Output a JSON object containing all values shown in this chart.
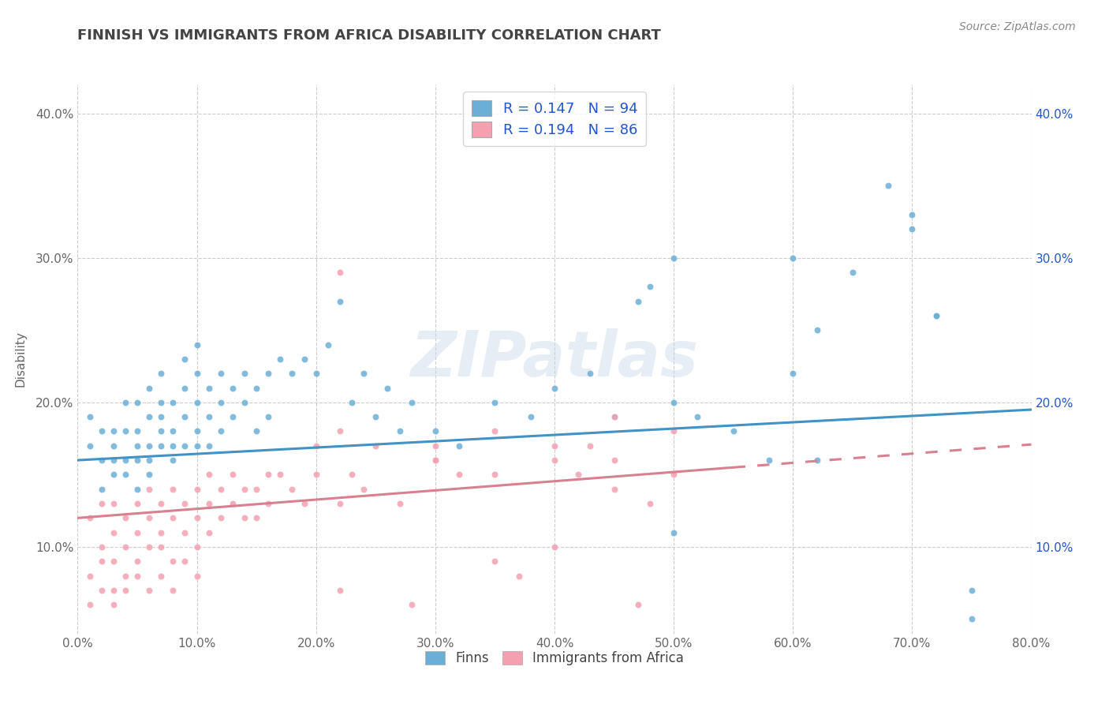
{
  "title": "FINNISH VS IMMIGRANTS FROM AFRICA DISABILITY CORRELATION CHART",
  "source": "Source: ZipAtlas.com",
  "ylabel": "Disability",
  "xlim": [
    0.0,
    0.8
  ],
  "ylim": [
    0.04,
    0.42
  ],
  "xticks": [
    0.0,
    0.1,
    0.2,
    0.3,
    0.4,
    0.5,
    0.6,
    0.7,
    0.8
  ],
  "xticklabels": [
    "0.0%",
    "10.0%",
    "20.0%",
    "30.0%",
    "40.0%",
    "50.0%",
    "60.0%",
    "70.0%",
    "80.0%"
  ],
  "yticks": [
    0.1,
    0.2,
    0.3,
    0.4
  ],
  "yticklabels": [
    "10.0%",
    "20.0%",
    "30.0%",
    "40.0%"
  ],
  "finns_color": "#6baed6",
  "immigrants_color": "#f4a0b0",
  "finns_line_color": "#4292c6",
  "immigrants_line_color": "#d88090",
  "watermark": "ZIPatlas",
  "background_color": "#ffffff",
  "grid_color": "#cccccc",
  "title_color": "#444444",
  "axis_label_color": "#666666",
  "tick_color": "#666666",
  "legend_text_color": "#2255cc",
  "finns_line_start": 0.16,
  "finns_line_end": 0.195,
  "imm_line_start": 0.12,
  "imm_line_end_x": 0.55,
  "imm_line_end": 0.155,
  "finns_x": [
    0.01,
    0.01,
    0.02,
    0.02,
    0.02,
    0.03,
    0.03,
    0.03,
    0.03,
    0.04,
    0.04,
    0.04,
    0.04,
    0.05,
    0.05,
    0.05,
    0.05,
    0.05,
    0.06,
    0.06,
    0.06,
    0.06,
    0.06,
    0.07,
    0.07,
    0.07,
    0.07,
    0.07,
    0.08,
    0.08,
    0.08,
    0.08,
    0.09,
    0.09,
    0.09,
    0.09,
    0.1,
    0.1,
    0.1,
    0.1,
    0.1,
    0.11,
    0.11,
    0.11,
    0.12,
    0.12,
    0.12,
    0.13,
    0.13,
    0.14,
    0.14,
    0.15,
    0.15,
    0.16,
    0.16,
    0.17,
    0.18,
    0.19,
    0.2,
    0.21,
    0.22,
    0.23,
    0.24,
    0.25,
    0.26,
    0.27,
    0.28,
    0.3,
    0.32,
    0.35,
    0.38,
    0.4,
    0.43,
    0.45,
    0.48,
    0.5,
    0.52,
    0.55,
    0.58,
    0.6,
    0.62,
    0.65,
    0.68,
    0.7,
    0.72,
    0.75,
    0.47,
    0.5,
    0.62,
    0.7,
    0.72,
    0.75,
    0.5,
    0.6
  ],
  "finns_y": [
    0.17,
    0.19,
    0.16,
    0.18,
    0.14,
    0.15,
    0.17,
    0.18,
    0.16,
    0.16,
    0.18,
    0.2,
    0.15,
    0.14,
    0.16,
    0.18,
    0.2,
    0.17,
    0.15,
    0.17,
    0.19,
    0.21,
    0.16,
    0.18,
    0.2,
    0.22,
    0.17,
    0.19,
    0.16,
    0.18,
    0.2,
    0.17,
    0.19,
    0.21,
    0.17,
    0.23,
    0.18,
    0.2,
    0.22,
    0.17,
    0.24,
    0.19,
    0.21,
    0.17,
    0.2,
    0.22,
    0.18,
    0.21,
    0.19,
    0.2,
    0.22,
    0.21,
    0.18,
    0.22,
    0.19,
    0.23,
    0.22,
    0.23,
    0.22,
    0.24,
    0.27,
    0.2,
    0.22,
    0.19,
    0.21,
    0.18,
    0.2,
    0.18,
    0.17,
    0.2,
    0.19,
    0.21,
    0.22,
    0.19,
    0.28,
    0.11,
    0.19,
    0.18,
    0.16,
    0.22,
    0.16,
    0.29,
    0.35,
    0.33,
    0.26,
    0.07,
    0.27,
    0.2,
    0.25,
    0.32,
    0.26,
    0.05,
    0.3,
    0.3
  ],
  "imm_x": [
    0.01,
    0.01,
    0.01,
    0.02,
    0.02,
    0.02,
    0.02,
    0.03,
    0.03,
    0.03,
    0.03,
    0.03,
    0.04,
    0.04,
    0.04,
    0.04,
    0.05,
    0.05,
    0.05,
    0.05,
    0.06,
    0.06,
    0.06,
    0.06,
    0.07,
    0.07,
    0.07,
    0.07,
    0.08,
    0.08,
    0.08,
    0.08,
    0.09,
    0.09,
    0.09,
    0.1,
    0.1,
    0.1,
    0.1,
    0.11,
    0.11,
    0.11,
    0.12,
    0.12,
    0.13,
    0.13,
    0.14,
    0.14,
    0.15,
    0.15,
    0.16,
    0.16,
    0.17,
    0.18,
    0.19,
    0.2,
    0.2,
    0.22,
    0.22,
    0.23,
    0.24,
    0.25,
    0.27,
    0.28,
    0.3,
    0.32,
    0.35,
    0.37,
    0.4,
    0.42,
    0.43,
    0.45,
    0.47,
    0.48,
    0.5,
    0.22,
    0.3,
    0.35,
    0.4,
    0.45,
    0.5,
    0.22,
    0.3,
    0.35,
    0.4,
    0.45
  ],
  "imm_y": [
    0.12,
    0.08,
    0.06,
    0.1,
    0.13,
    0.07,
    0.09,
    0.11,
    0.09,
    0.06,
    0.13,
    0.07,
    0.1,
    0.12,
    0.08,
    0.07,
    0.11,
    0.09,
    0.13,
    0.08,
    0.12,
    0.1,
    0.07,
    0.14,
    0.13,
    0.11,
    0.08,
    0.1,
    0.12,
    0.14,
    0.09,
    0.07,
    0.13,
    0.11,
    0.09,
    0.12,
    0.14,
    0.1,
    0.08,
    0.13,
    0.15,
    0.11,
    0.12,
    0.14,
    0.13,
    0.15,
    0.14,
    0.12,
    0.14,
    0.12,
    0.13,
    0.15,
    0.15,
    0.14,
    0.13,
    0.15,
    0.17,
    0.18,
    0.07,
    0.15,
    0.14,
    0.17,
    0.13,
    0.06,
    0.16,
    0.15,
    0.09,
    0.08,
    0.1,
    0.15,
    0.17,
    0.16,
    0.06,
    0.13,
    0.15,
    0.29,
    0.16,
    0.18,
    0.17,
    0.19,
    0.18,
    0.13,
    0.17,
    0.15,
    0.16,
    0.14
  ]
}
